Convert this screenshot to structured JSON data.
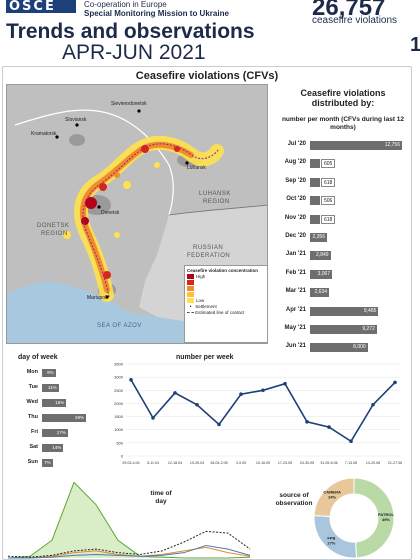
{
  "header": {
    "logo": "OSCE",
    "org_line1": "Co-operation in Europe",
    "org_line2": "Special Monitoring Mission to Ukraine",
    "title": "Trends and observations",
    "period": "APR-JUN 2021",
    "big_number": "26,757",
    "big_number_label": "ceasefire violations",
    "edge_text": "1"
  },
  "card": {
    "title": "Ceasefire violations (CFVs)"
  },
  "map": {
    "places": [
      "Sievierodonetsk",
      "Kramatorsk",
      "Sloviansk",
      "Luhansk",
      "Donetsk",
      "Mariupol"
    ],
    "regions": [
      "DONETSK",
      "REGION",
      "LUHANSK",
      "REGION",
      "RUSSIAN",
      "FEDERATION",
      "SEA OF AZOV"
    ],
    "legend": {
      "title": "Ceasefire violation concentration",
      "high": "High",
      "low": "Low",
      "settlement": "Settlement",
      "contact_line": "Estimated line of contact"
    },
    "colors": {
      "water": "#a7c8de",
      "land": "#bfbfbf",
      "urban": "#8a8a8a",
      "high": "#b3001b",
      "mid": "#f28c28",
      "low": "#ffe14d",
      "contact": "#8a1fa2"
    }
  },
  "monthly": {
    "heading": "Ceasefire violations distributed by:",
    "sub": "number per month (CFVs during last 12 months)",
    "chart_data": {
      "type": "bar",
      "categories": [
        "Jul '20",
        "Aug '20",
        "Sep '20",
        "Oct '20",
        "Nov '20",
        "Dec '20",
        "Jan '21",
        "Feb '21",
        "Mar '21",
        "Apr '21",
        "May '21",
        "Jun '21"
      ],
      "values": [
        12756,
        605,
        618,
        506,
        618,
        2356,
        2849,
        3067,
        2634,
        9485,
        9272,
        8000
      ],
      "value_labels": [
        "12,756",
        "605",
        "618",
        "506",
        "618",
        "2,356",
        "2,849",
        "3,067",
        "2,634",
        "9,485",
        "9,272",
        "8,000"
      ],
      "bar_color": "#6e6e6e"
    }
  },
  "dow": {
    "title": "day of week",
    "chart_data": {
      "type": "bar",
      "categories": [
        "Mon",
        "Tue",
        "Wed",
        "Thu",
        "Fri",
        "Sat",
        "Sun"
      ],
      "values": [
        9,
        11,
        16,
        29,
        17,
        14,
        7
      ],
      "value_labels": [
        "9%",
        "11%",
        "16%",
        "29%",
        "17%",
        "14%",
        "7%"
      ]
    }
  },
  "weekly": {
    "title": "number per week",
    "chart_data": {
      "type": "line",
      "x": [
        "29.03-4.04",
        "5-11.04",
        "12-18.04",
        "19-25.04",
        "26.04-2.05",
        "3-9.05",
        "10-16.05",
        "17-23.05",
        "24-30.05",
        "31.05-6.06",
        "7-13.06",
        "14-20.06",
        "21-27.06"
      ],
      "y": [
        2900,
        1450,
        2400,
        1950,
        1200,
        2350,
        2500,
        2750,
        1300,
        1100,
        560,
        1950,
        2800
      ],
      "ylim": [
        0,
        3500
      ],
      "yticks": [
        "0",
        "500",
        "1000",
        "1500",
        "2000",
        "2500",
        "3000",
        "3500"
      ],
      "line_color": "#1d3f7a"
    }
  },
  "tod": {
    "title": "time of day",
    "chart_data": {
      "type": "area",
      "series": [
        {
          "values": [
            0,
            2,
            20,
            85,
            60,
            20,
            2,
            1,
            0,
            0,
            0,
            1
          ]
        },
        {
          "values": [
            0,
            0,
            2,
            6,
            8,
            4,
            2,
            4,
            8,
            12,
            6,
            2
          ]
        },
        {
          "values": [
            0,
            0,
            1,
            3,
            4,
            3,
            2,
            3,
            6,
            14,
            10,
            3
          ]
        },
        {
          "values": [
            2,
            1,
            3,
            8,
            10,
            6,
            4,
            8,
            18,
            30,
            28,
            10
          ]
        }
      ]
    }
  },
  "source": {
    "title": "source of observation",
    "chart_data": {
      "type": "pie",
      "categories": [
        "PATROL",
        "FPB",
        "CAMERA"
      ],
      "values": [
        49,
        27,
        24
      ],
      "value_labels": [
        "49%",
        "27%",
        "24%"
      ],
      "colors": [
        "#b9d9a6",
        "#a9c6de",
        "#e8c79a"
      ]
    }
  }
}
